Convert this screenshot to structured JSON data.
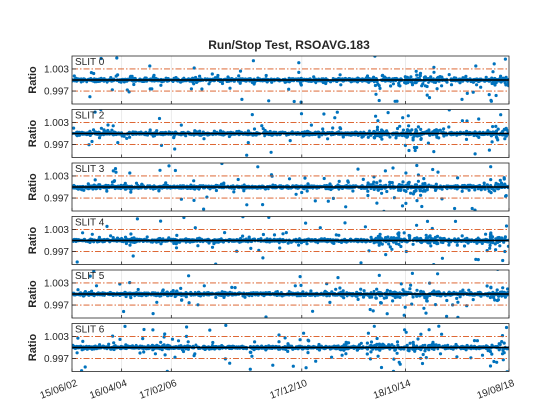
{
  "chart_data": {
    "type": "scatter",
    "title": "Run/Stop Test, RSOAVG.183",
    "ylabel": "Ratio",
    "x_range": [
      "2002-06-15",
      "2018-08-19"
    ],
    "ylim": [
      0.9935,
      1.0065
    ],
    "ytick_labels": [
      "1.003",
      "0.997"
    ],
    "yticks": [
      1.003,
      0.997
    ],
    "xtick_labels": [
      "15/06/02",
      "16/04/04",
      "17/02/06",
      "17/12/10",
      "18/10/14",
      "19/08/18"
    ],
    "xticks": [
      "2002-06-15",
      "2004-04-16",
      "2006-02-17",
      "2010-12-17",
      "2014-10-18",
      "2018-08-19"
    ],
    "reference_lines": {
      "solid": 1.0,
      "dashdot": [
        1.003,
        0.997
      ]
    },
    "point_color": "#0072BD",
    "reference_line_color": "#D95319",
    "panels": [
      {
        "name": "SLIT 0",
        "seed": 11
      },
      {
        "name": "SLIT 2",
        "seed": 23
      },
      {
        "name": "SLIT 3",
        "seed": 37
      },
      {
        "name": "SLIT 4",
        "seed": 41
      },
      {
        "name": "SLIT 5",
        "seed": 53
      },
      {
        "name": "SLIT 6",
        "seed": 67
      }
    ]
  }
}
